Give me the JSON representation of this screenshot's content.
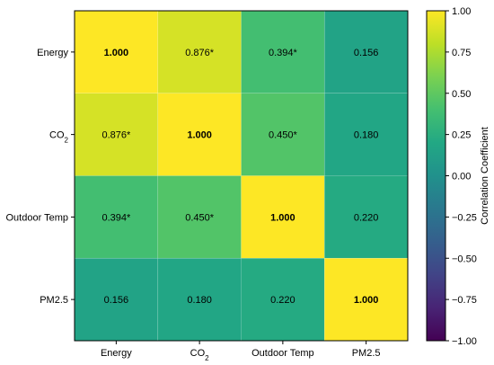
{
  "chart_data": {
    "type": "heatmap",
    "title": "",
    "xlabel": "",
    "ylabel": "",
    "categories": [
      "Energy",
      "CO2",
      "Outdoor Temp",
      "PM2.5"
    ],
    "category_display": [
      {
        "base": "Energy",
        "sub": ""
      },
      {
        "base": "CO",
        "sub": "2"
      },
      {
        "base": "Outdoor Temp",
        "sub": ""
      },
      {
        "base": "PM2.5",
        "sub": ""
      }
    ],
    "values": [
      [
        1.0,
        0.876,
        0.394,
        0.156
      ],
      [
        0.876,
        1.0,
        0.45,
        0.18
      ],
      [
        0.394,
        0.45,
        1.0,
        0.22
      ],
      [
        0.156,
        0.18,
        0.22,
        1.0
      ]
    ],
    "cell_labels": [
      [
        "1.000",
        "0.876*",
        "0.394*",
        "0.156"
      ],
      [
        "0.876*",
        "1.000",
        "0.450*",
        "0.180"
      ],
      [
        "0.394*",
        "0.450*",
        "1.000",
        "0.220"
      ],
      [
        "0.156",
        "0.180",
        "0.220",
        "1.000"
      ]
    ],
    "colorscale": "viridis",
    "zlim": [
      -1.0,
      1.0
    ],
    "colorbar": {
      "label": "Correlation Coefficient",
      "ticks": [
        1.0,
        0.75,
        0.5,
        0.25,
        0.0,
        -0.25,
        -0.5,
        -0.75,
        -1.0
      ],
      "tick_labels": [
        "1.00",
        "0.75",
        "0.50",
        "0.25",
        "0.00",
        "−0.25",
        "−0.50",
        "−0.75",
        "−1.00"
      ]
    },
    "grid": false
  }
}
